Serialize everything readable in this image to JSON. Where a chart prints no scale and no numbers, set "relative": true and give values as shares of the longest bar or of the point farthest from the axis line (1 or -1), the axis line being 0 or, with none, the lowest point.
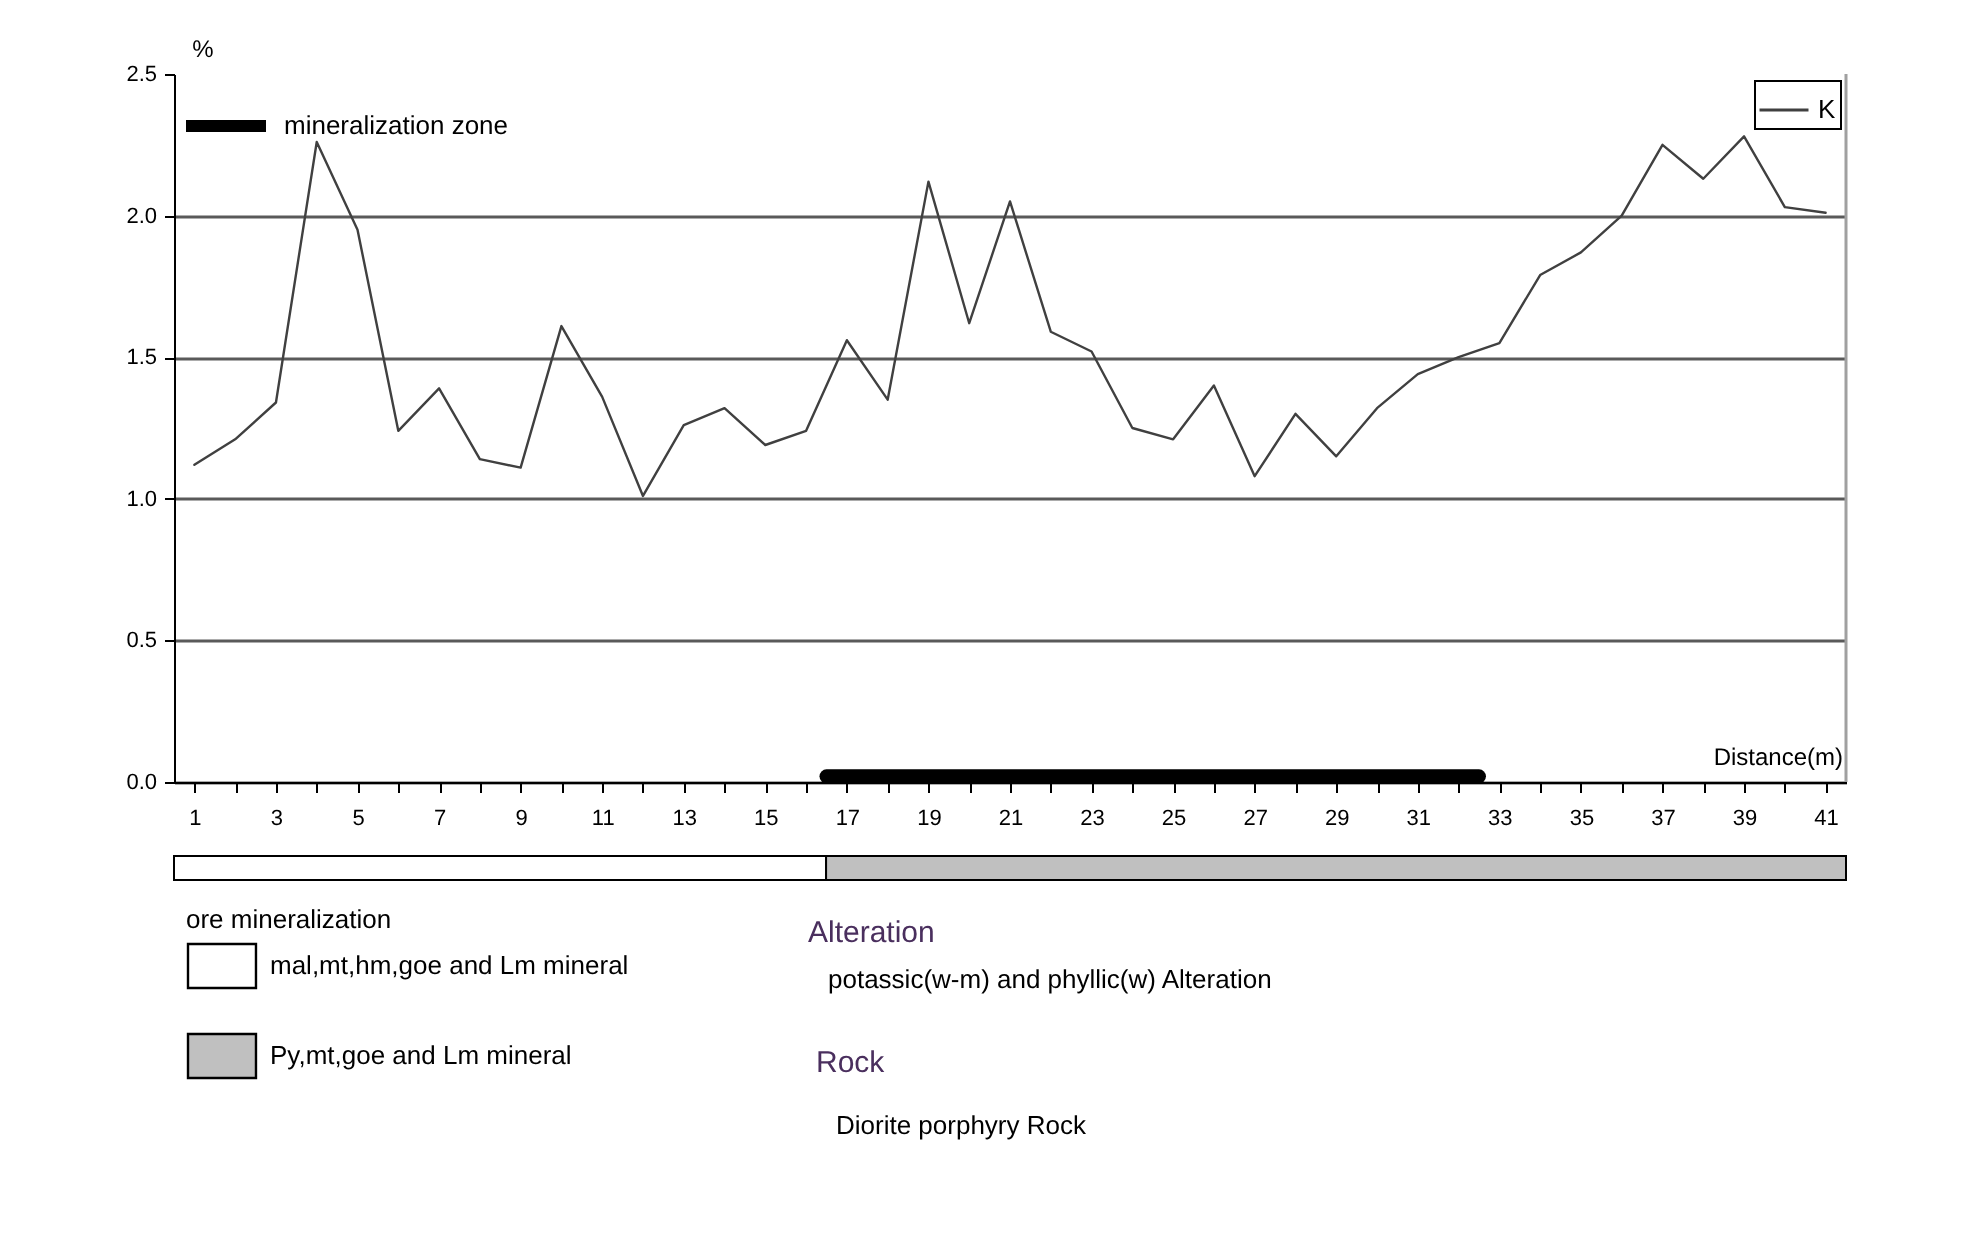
{
  "chart_data": [
    {
      "type": "line",
      "ylabel": "%",
      "xlabel": "Distance(m)",
      "x": [
        1,
        2,
        3,
        4,
        5,
        6,
        7,
        8,
        9,
        10,
        11,
        12,
        13,
        14,
        15,
        16,
        17,
        18,
        19,
        20,
        21,
        22,
        23,
        24,
        25,
        26,
        27,
        28,
        29,
        30,
        31,
        32,
        33,
        34,
        35,
        36,
        37,
        38,
        39,
        40,
        41
      ],
      "series": [
        {
          "name": "K",
          "color": "#404040",
          "values": [
            1.12,
            1.21,
            1.34,
            2.26,
            1.95,
            1.24,
            1.39,
            1.14,
            1.11,
            1.61,
            1.36,
            1.01,
            1.26,
            1.32,
            1.19,
            1.24,
            1.56,
            1.35,
            2.12,
            1.62,
            2.05,
            1.59,
            1.52,
            1.25,
            1.21,
            1.4,
            1.08,
            1.3,
            1.15,
            1.32,
            1.44,
            1.5,
            1.55,
            1.79,
            1.87,
            2.0,
            2.25,
            2.13,
            2.28,
            2.03,
            2.01
          ]
        },
        {
          "name": "mineralization zone",
          "color": "#000000",
          "x": [
            16.5,
            32.5
          ],
          "values": [
            0.02,
            0.02
          ]
        }
      ],
      "xlim": [
        0.5,
        41.5
      ],
      "xticks": [
        1,
        {
          "value": 2,
          "label": null
        },
        3,
        {
          "value": 4,
          "label": null
        },
        5,
        {
          "value": 6,
          "label": null
        },
        7,
        {
          "value": 8,
          "label": null
        },
        9,
        {
          "value": 10,
          "label": null
        },
        11,
        {
          "value": 12,
          "label": null
        },
        13,
        {
          "value": 14,
          "label": null
        },
        15,
        {
          "value": 16,
          "label": null
        },
        17,
        {
          "value": 18,
          "label": null
        },
        19,
        {
          "value": 20,
          "label": null
        },
        21,
        {
          "value": 22,
          "label": null
        },
        23,
        {
          "value": 24,
          "label": null
        },
        25,
        {
          "value": 26,
          "label": null
        },
        27,
        {
          "value": 28,
          "label": null
        },
        29,
        {
          "value": 30,
          "label": null
        },
        31,
        {
          "value": 32,
          "label": null
        },
        33,
        {
          "value": 34,
          "label": null
        },
        35,
        {
          "value": 36,
          "label": null
        },
        37,
        {
          "value": 38,
          "label": null
        },
        39,
        {
          "value": 40,
          "label": null
        },
        41
      ],
      "ylim": [
        0,
        2.5
      ],
      "yticks": [
        {
          "value": 0,
          "label": "0.0"
        },
        0.5,
        {
          "value": 1,
          "label": "1.0"
        },
        1.5,
        {
          "value": 2,
          "label": "2.0"
        },
        2.5
      ],
      "grid": "y",
      "legend": "top right"
    },
    {
      "type": "bar",
      "orientation": "horizontal",
      "stacked": true,
      "relative": true,
      "categories": [
        null
      ],
      "series": [
        {
          "name": "mal,mt,hm,goe and Lm mineral",
          "color": "#ffffff",
          "values": [
            0.39
          ]
        },
        {
          "name": "Py,mt,goe and Lm mineral",
          "color": "#c0c0c0",
          "values": [
            0.61
          ]
        }
      ],
      "legend": "bottom left",
      "legend_title": "ore mineralization",
      "annotations": [
        "Alteration",
        "potassic(w-m) and phyllic(w) Alteration",
        "Rock",
        "Diorite porphyry Rock"
      ]
    }
  ]
}
